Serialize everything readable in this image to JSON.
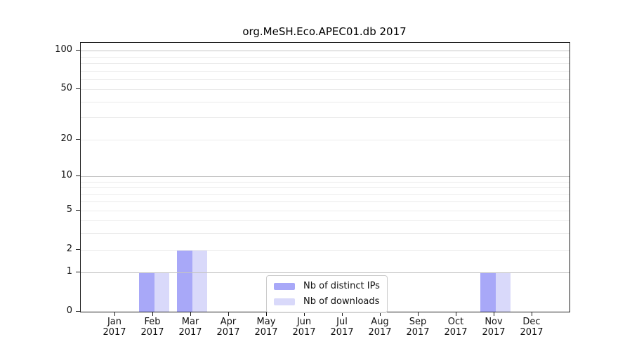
{
  "chart_data": {
    "type": "bar",
    "title": "org.MeSH.Eco.APEC01.db 2017",
    "categories": [
      "Jan 2017",
      "Feb 2017",
      "Mar 2017",
      "Apr 2017",
      "May 2017",
      "Jun 2017",
      "Jul 2017",
      "Aug 2017",
      "Sep 2017",
      "Oct 2017",
      "Nov 2017",
      "Dec 2017"
    ],
    "series": [
      {
        "name": "Nb of distinct IPs",
        "color": "#a8a8f8",
        "values": [
          0,
          1,
          2,
          0,
          0,
          0,
          0,
          0,
          0,
          0,
          1,
          0
        ]
      },
      {
        "name": "Nb of downloads",
        "color": "#d9d9fa",
        "values": [
          0,
          1,
          2,
          0,
          0,
          0,
          0,
          0,
          0,
          0,
          1,
          0
        ]
      }
    ],
    "yscale": "log1p",
    "ylim": [
      0,
      115
    ],
    "yticks": [
      0,
      1,
      2,
      5,
      10,
      20,
      50,
      100
    ],
    "grid": {
      "major_values": [
        1,
        10,
        100
      ],
      "minor_values": [
        2,
        3,
        4,
        5,
        6,
        7,
        8,
        9,
        20,
        30,
        40,
        50,
        60,
        70,
        80,
        90
      ]
    },
    "legend_position": "lower center inside",
    "xlabel": "",
    "ylabel": ""
  }
}
